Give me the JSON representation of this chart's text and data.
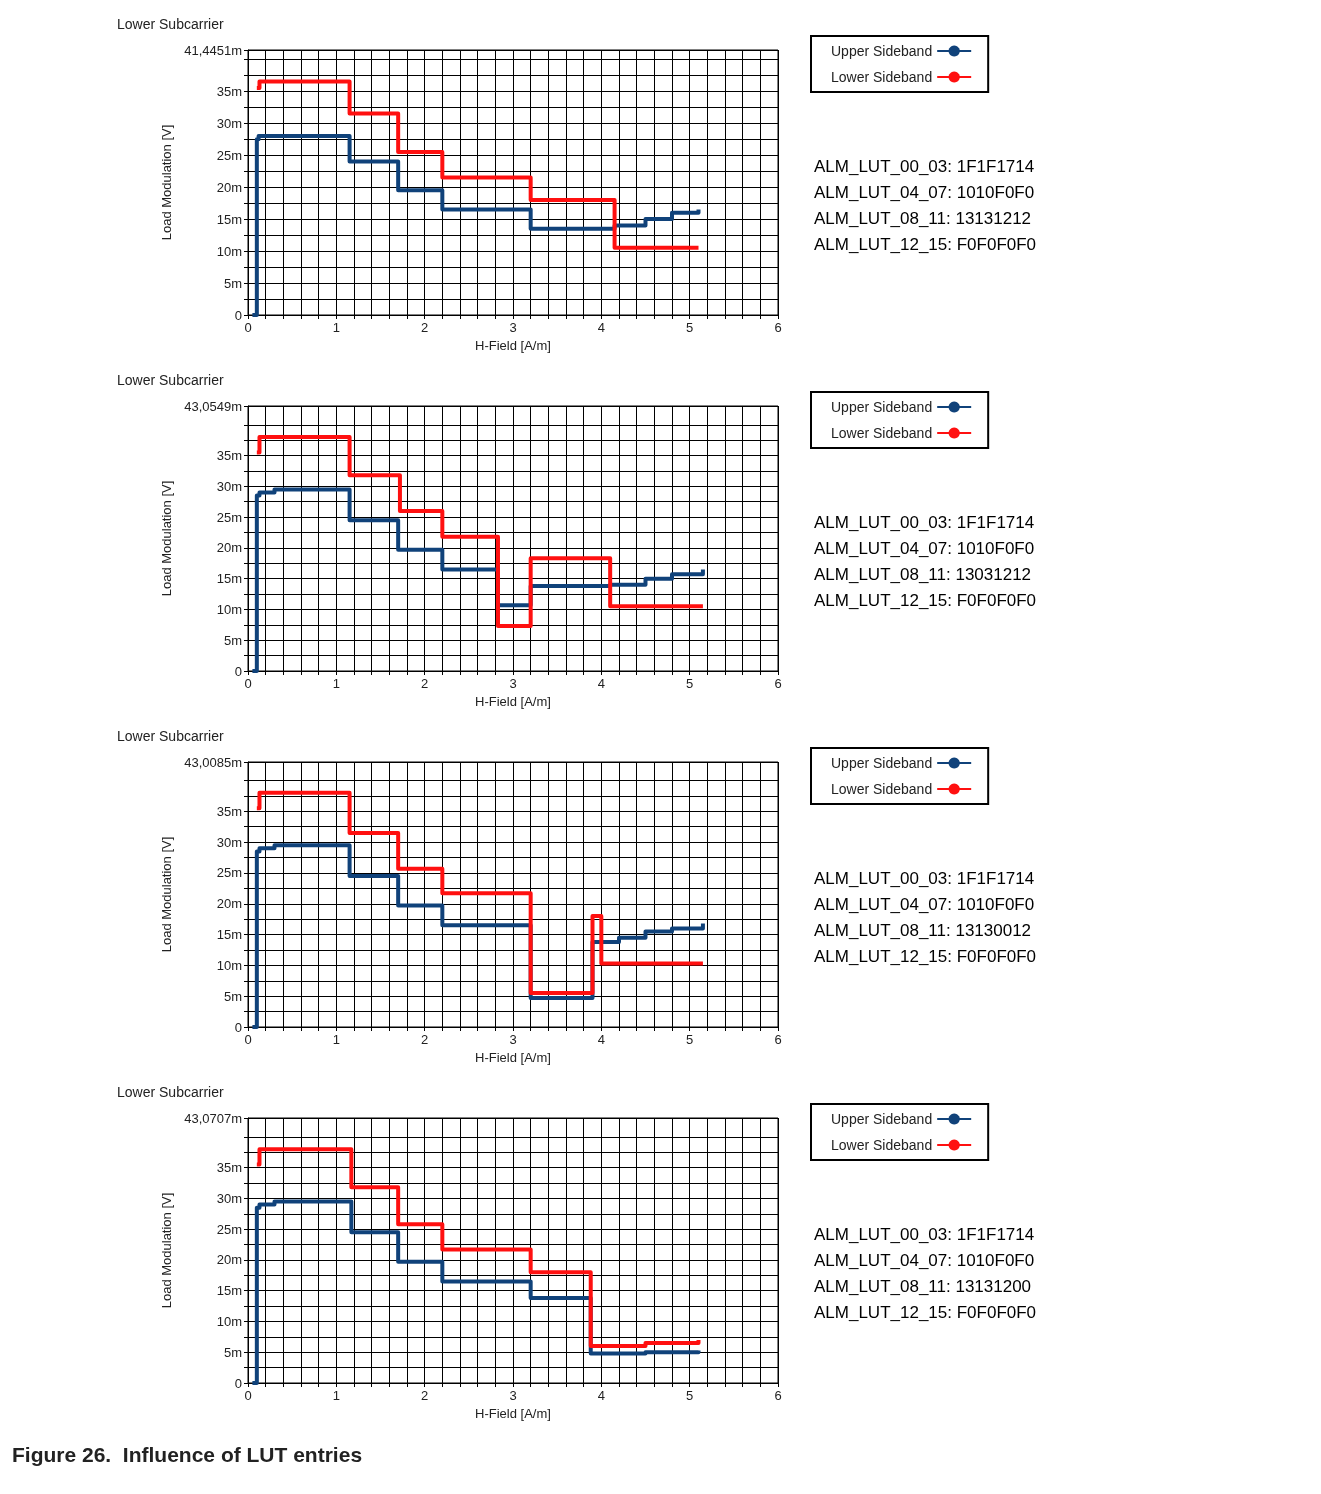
{
  "chart_data": [
    {
      "type": "step",
      "title": "Lower Subcarrier",
      "xlabel": "H-Field [A/m]",
      "ylabel": "Load Modulation [V]",
      "xlim": [
        0,
        6
      ],
      "ylim": [
        0,
        41.4451
      ],
      "grid": true,
      "legend": "top right",
      "marker": "none",
      "xticks": [
        0,
        {
          "value": 0.2,
          "label": null
        },
        {
          "value": 0.4,
          "label": null
        },
        {
          "value": 0.6,
          "label": null
        },
        {
          "value": 0.8,
          "label": null
        },
        1,
        {
          "value": 1.2,
          "label": null
        },
        {
          "value": 1.4,
          "label": null
        },
        {
          "value": 1.6,
          "label": null
        },
        {
          "value": 1.8,
          "label": null
        },
        2,
        {
          "value": 2.2,
          "label": null
        },
        {
          "value": 2.4,
          "label": null
        },
        {
          "value": 2.6,
          "label": null
        },
        {
          "value": 2.8,
          "label": null
        },
        3,
        {
          "value": 3.2,
          "label": null
        },
        {
          "value": 3.4,
          "label": null
        },
        {
          "value": 3.6,
          "label": null
        },
        {
          "value": 3.8,
          "label": null
        },
        4,
        {
          "value": 4.2,
          "label": null
        },
        {
          "value": 4.4,
          "label": null
        },
        {
          "value": 4.6,
          "label": null
        },
        {
          "value": 4.8,
          "label": null
        },
        5,
        {
          "value": 5.2,
          "label": null
        },
        {
          "value": 5.4,
          "label": null
        },
        {
          "value": 5.6,
          "label": null
        },
        {
          "value": 5.8,
          "label": null
        },
        6
      ],
      "yticks": [
        {
          "value": 0,
          "label": "0"
        },
        {
          "value": 2.5,
          "label": null
        },
        {
          "value": 5,
          "label": "5m"
        },
        {
          "value": 7.5,
          "label": null
        },
        {
          "value": 10,
          "label": "10m"
        },
        {
          "value": 12.5,
          "label": null
        },
        {
          "value": 15,
          "label": "15m"
        },
        {
          "value": 17.5,
          "label": null
        },
        {
          "value": 20,
          "label": "20m"
        },
        {
          "value": 22.5,
          "label": null
        },
        {
          "value": 25,
          "label": "25m"
        },
        {
          "value": 27.5,
          "label": null
        },
        {
          "value": 30,
          "label": "30m"
        },
        {
          "value": 32.5,
          "label": null
        },
        {
          "value": 35,
          "label": "35m"
        },
        {
          "value": 37.5,
          "label": null
        },
        {
          "value": 40,
          "label": null
        },
        {
          "value": 41.4451,
          "label": "41,4451m"
        }
      ],
      "series": [
        {
          "name": "Upper Sideband",
          "color": "#10427a",
          "x": [
            0.05,
            0.1,
            0.12,
            0.3,
            1.15,
            1.7,
            2.2,
            3.2,
            4.15,
            4.5,
            4.8,
            5.1
          ],
          "values": [
            0,
            27.5,
            28,
            28,
            24,
            19.5,
            16.5,
            13.5,
            14,
            15,
            16,
            16.5
          ]
        },
        {
          "name": "Lower Sideband",
          "color": "#ff1010",
          "x": [
            0.1,
            0.13,
            1.15,
            1.7,
            2.2,
            3.2,
            4.15,
            5.1
          ],
          "values": [
            35.5,
            36.5,
            31.5,
            25.5,
            21.5,
            18,
            10.5,
            10.5
          ]
        }
      ],
      "annotations": [
        "ALM_LUT_00_03: 1F1F1714",
        "ALM_LUT_04_07: 1010F0F0",
        "ALM_LUT_08_11: 13131212",
        "ALM_LUT_12_15: F0F0F0F0"
      ]
    },
    {
      "type": "step",
      "title": "Lower Subcarrier",
      "xlabel": "H-Field [A/m]",
      "ylabel": "Load Modulation [V]",
      "xlim": [
        0,
        6
      ],
      "ylim": [
        0,
        43.0549
      ],
      "grid": true,
      "legend": "top right",
      "marker": "none",
      "xticks": [
        0,
        {
          "value": 0.2,
          "label": null
        },
        {
          "value": 0.4,
          "label": null
        },
        {
          "value": 0.6,
          "label": null
        },
        {
          "value": 0.8,
          "label": null
        },
        1,
        {
          "value": 1.2,
          "label": null
        },
        {
          "value": 1.4,
          "label": null
        },
        {
          "value": 1.6,
          "label": null
        },
        {
          "value": 1.8,
          "label": null
        },
        2,
        {
          "value": 2.2,
          "label": null
        },
        {
          "value": 2.4,
          "label": null
        },
        {
          "value": 2.6,
          "label": null
        },
        {
          "value": 2.8,
          "label": null
        },
        3,
        {
          "value": 3.2,
          "label": null
        },
        {
          "value": 3.4,
          "label": null
        },
        {
          "value": 3.6,
          "label": null
        },
        {
          "value": 3.8,
          "label": null
        },
        4,
        {
          "value": 4.2,
          "label": null
        },
        {
          "value": 4.4,
          "label": null
        },
        {
          "value": 4.6,
          "label": null
        },
        {
          "value": 4.8,
          "label": null
        },
        5,
        {
          "value": 5.2,
          "label": null
        },
        {
          "value": 5.4,
          "label": null
        },
        {
          "value": 5.6,
          "label": null
        },
        {
          "value": 5.8,
          "label": null
        },
        6
      ],
      "yticks": [
        {
          "value": 0,
          "label": "0"
        },
        {
          "value": 2.5,
          "label": null
        },
        {
          "value": 5,
          "label": "5m"
        },
        {
          "value": 7.5,
          "label": null
        },
        {
          "value": 10,
          "label": "10m"
        },
        {
          "value": 12.5,
          "label": null
        },
        {
          "value": 15,
          "label": "15m"
        },
        {
          "value": 17.5,
          "label": null
        },
        {
          "value": 20,
          "label": "20m"
        },
        {
          "value": 22.5,
          "label": null
        },
        {
          "value": 25,
          "label": "25m"
        },
        {
          "value": 27.5,
          "label": null
        },
        {
          "value": 30,
          "label": "30m"
        },
        {
          "value": 32.5,
          "label": null
        },
        {
          "value": 35,
          "label": "35m"
        },
        {
          "value": 37.5,
          "label": null
        },
        {
          "value": 40,
          "label": null
        },
        {
          "value": 43.0549,
          "label": "43,0549m"
        }
      ],
      "series": [
        {
          "name": "Upper Sideband",
          "color": "#10427a",
          "x": [
            0.05,
            0.1,
            0.13,
            0.3,
            1.15,
            1.7,
            2.2,
            2.83,
            3.2,
            4.1,
            4.5,
            4.8,
            5.15
          ],
          "values": [
            0,
            28.5,
            29,
            29.5,
            24.5,
            19.7,
            16.5,
            10.7,
            13.8,
            14,
            15,
            15.7,
            16.5
          ]
        },
        {
          "name": "Lower Sideband",
          "color": "#ff1010",
          "x": [
            0.1,
            0.13,
            1.15,
            1.72,
            2.2,
            2.83,
            3.2,
            4.1,
            5.15
          ],
          "values": [
            35.5,
            38,
            31.8,
            26,
            21.8,
            7.3,
            18.3,
            10.5,
            10.5
          ]
        }
      ],
      "annotations": [
        "ALM_LUT_00_03: 1F1F1714",
        "ALM_LUT_04_07: 1010F0F0",
        "ALM_LUT_08_11: 13031212",
        "ALM_LUT_12_15: F0F0F0F0"
      ]
    },
    {
      "type": "step",
      "title": "Lower Subcarrier",
      "xlabel": "H-Field [A/m]",
      "ylabel": "Load Modulation [V]",
      "xlim": [
        0,
        6
      ],
      "ylim": [
        0,
        43.0085
      ],
      "grid": true,
      "legend": "top right",
      "marker": "none",
      "xticks": [
        0,
        {
          "value": 0.2,
          "label": null
        },
        {
          "value": 0.4,
          "label": null
        },
        {
          "value": 0.6,
          "label": null
        },
        {
          "value": 0.8,
          "label": null
        },
        1,
        {
          "value": 1.2,
          "label": null
        },
        {
          "value": 1.4,
          "label": null
        },
        {
          "value": 1.6,
          "label": null
        },
        {
          "value": 1.8,
          "label": null
        },
        2,
        {
          "value": 2.2,
          "label": null
        },
        {
          "value": 2.4,
          "label": null
        },
        {
          "value": 2.6,
          "label": null
        },
        {
          "value": 2.8,
          "label": null
        },
        3,
        {
          "value": 3.2,
          "label": null
        },
        {
          "value": 3.4,
          "label": null
        },
        {
          "value": 3.6,
          "label": null
        },
        {
          "value": 3.8,
          "label": null
        },
        4,
        {
          "value": 4.2,
          "label": null
        },
        {
          "value": 4.4,
          "label": null
        },
        {
          "value": 4.6,
          "label": null
        },
        {
          "value": 4.8,
          "label": null
        },
        5,
        {
          "value": 5.2,
          "label": null
        },
        {
          "value": 5.4,
          "label": null
        },
        {
          "value": 5.6,
          "label": null
        },
        {
          "value": 5.8,
          "label": null
        },
        6
      ],
      "yticks": [
        {
          "value": 0,
          "label": "0"
        },
        {
          "value": 2.5,
          "label": null
        },
        {
          "value": 5,
          "label": "5m"
        },
        {
          "value": 7.5,
          "label": null
        },
        {
          "value": 10,
          "label": "10m"
        },
        {
          "value": 12.5,
          "label": null
        },
        {
          "value": 15,
          "label": "15m"
        },
        {
          "value": 17.5,
          "label": null
        },
        {
          "value": 20,
          "label": "20m"
        },
        {
          "value": 22.5,
          "label": null
        },
        {
          "value": 25,
          "label": "25m"
        },
        {
          "value": 27.5,
          "label": null
        },
        {
          "value": 30,
          "label": "30m"
        },
        {
          "value": 32.5,
          "label": null
        },
        {
          "value": 35,
          "label": "35m"
        },
        {
          "value": 37.5,
          "label": null
        },
        {
          "value": 40,
          "label": null
        },
        {
          "value": 43.0085,
          "label": "43,0085m"
        }
      ],
      "series": [
        {
          "name": "Upper Sideband",
          "color": "#10427a",
          "x": [
            0.05,
            0.1,
            0.13,
            0.3,
            1.15,
            1.7,
            2.2,
            3.2,
            3.9,
            4.2,
            4.5,
            4.8,
            5.15
          ],
          "values": [
            0,
            28.5,
            29,
            29.5,
            24.5,
            19.7,
            16.5,
            4.7,
            13.8,
            14.5,
            15.5,
            16,
            16.8
          ]
        },
        {
          "name": "Lower Sideband",
          "color": "#ff1010",
          "x": [
            0.1,
            0.13,
            1.15,
            1.7,
            2.2,
            3.2,
            3.9,
            4.0,
            5.15
          ],
          "values": [
            35.5,
            38,
            31.5,
            25.7,
            21.7,
            5.5,
            18,
            10.3,
            10.3
          ]
        }
      ],
      "annotations": [
        "ALM_LUT_00_03: 1F1F1714",
        "ALM_LUT_04_07: 1010F0F0",
        "ALM_LUT_08_11: 13130012",
        "ALM_LUT_12_15: F0F0F0F0"
      ]
    },
    {
      "type": "step",
      "title": "Lower Subcarrier",
      "xlabel": "H-Field [A/m]",
      "ylabel": "Load Modulation [V]",
      "xlim": [
        0,
        6
      ],
      "ylim": [
        0,
        43.0707
      ],
      "grid": true,
      "legend": "top right",
      "marker": "none",
      "xticks": [
        0,
        {
          "value": 0.2,
          "label": null
        },
        {
          "value": 0.4,
          "label": null
        },
        {
          "value": 0.6,
          "label": null
        },
        {
          "value": 0.8,
          "label": null
        },
        1,
        {
          "value": 1.2,
          "label": null
        },
        {
          "value": 1.4,
          "label": null
        },
        {
          "value": 1.6,
          "label": null
        },
        {
          "value": 1.8,
          "label": null
        },
        2,
        {
          "value": 2.2,
          "label": null
        },
        {
          "value": 2.4,
          "label": null
        },
        {
          "value": 2.6,
          "label": null
        },
        {
          "value": 2.8,
          "label": null
        },
        3,
        {
          "value": 3.2,
          "label": null
        },
        {
          "value": 3.4,
          "label": null
        },
        {
          "value": 3.6,
          "label": null
        },
        {
          "value": 3.8,
          "label": null
        },
        4,
        {
          "value": 4.2,
          "label": null
        },
        {
          "value": 4.4,
          "label": null
        },
        {
          "value": 4.6,
          "label": null
        },
        {
          "value": 4.8,
          "label": null
        },
        5,
        {
          "value": 5.2,
          "label": null
        },
        {
          "value": 5.4,
          "label": null
        },
        {
          "value": 5.6,
          "label": null
        },
        {
          "value": 5.8,
          "label": null
        },
        6
      ],
      "yticks": [
        {
          "value": 0,
          "label": "0"
        },
        {
          "value": 2.5,
          "label": null
        },
        {
          "value": 5,
          "label": "5m"
        },
        {
          "value": 7.5,
          "label": null
        },
        {
          "value": 10,
          "label": "10m"
        },
        {
          "value": 12.5,
          "label": null
        },
        {
          "value": 15,
          "label": "15m"
        },
        {
          "value": 17.5,
          "label": null
        },
        {
          "value": 20,
          "label": "20m"
        },
        {
          "value": 22.5,
          "label": null
        },
        {
          "value": 25,
          "label": "25m"
        },
        {
          "value": 27.5,
          "label": null
        },
        {
          "value": 30,
          "label": "30m"
        },
        {
          "value": 32.5,
          "label": null
        },
        {
          "value": 35,
          "label": "35m"
        },
        {
          "value": 37.5,
          "label": null
        },
        {
          "value": 40,
          "label": null
        },
        {
          "value": 43.0707,
          "label": "43,0707m"
        }
      ],
      "series": [
        {
          "name": "Upper Sideband",
          "color": "#10427a",
          "x": [
            0.05,
            0.1,
            0.13,
            0.3,
            1.17,
            1.7,
            2.2,
            3.2,
            3.88,
            4.5,
            5.1
          ],
          "values": [
            0,
            28.5,
            29,
            29.5,
            24.5,
            19.7,
            16.5,
            13.8,
            4.8,
            5,
            5.3
          ]
        },
        {
          "name": "Lower Sideband",
          "color": "#ff1010",
          "x": [
            0.1,
            0.13,
            1.17,
            1.7,
            2.2,
            3.2,
            3.88,
            4.5,
            5.1
          ],
          "values": [
            35.5,
            38,
            31.8,
            25.8,
            21.7,
            18,
            6,
            6.5,
            7
          ]
        }
      ],
      "annotations": [
        "ALM_LUT_00_03: 1F1F1714",
        "ALM_LUT_04_07: 1010F0F0",
        "ALM_LUT_08_11: 13131200",
        "ALM_LUT_12_15: F0F0F0F0",
        "Figure 26.  Influence of LUT entries"
      ]
    }
  ]
}
